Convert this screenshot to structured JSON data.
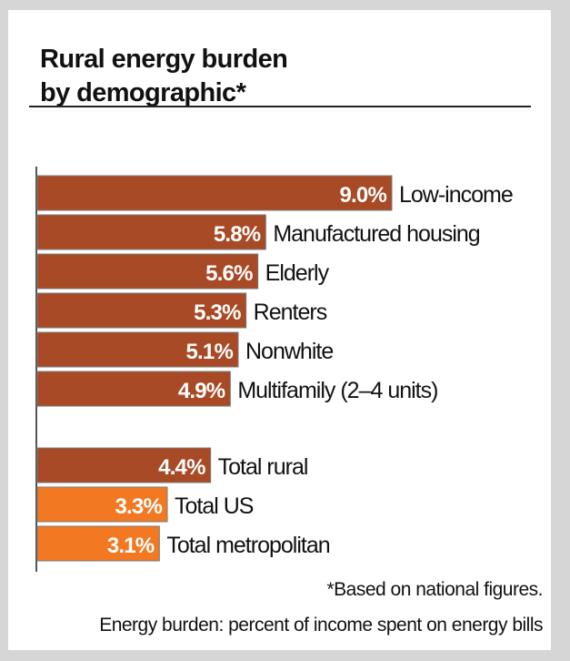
{
  "chart_data": {
    "type": "bar",
    "orientation": "horizontal",
    "title": "Rural energy burden by demographic*",
    "title_lines": [
      "Rural energy burden",
      "by demographic*"
    ],
    "unit": "%",
    "groups": [
      {
        "categories": [
          "Low-income",
          "Manufactured housing",
          "Elderly",
          "Renters",
          "Nonwhite",
          "Multifamily (2–4 units)"
        ],
        "values": [
          9.0,
          5.8,
          5.6,
          5.3,
          5.1,
          4.9
        ],
        "labels": [
          "9.0%",
          "5.8%",
          "5.6%",
          "5.3%",
          "5.1%",
          "4.9%"
        ],
        "colors": [
          "#a84a25",
          "#a84a25",
          "#a84a25",
          "#a84a25",
          "#a84a25",
          "#a84a25"
        ]
      },
      {
        "categories": [
          "Total rural",
          "Total US",
          "Total metropolitan"
        ],
        "values": [
          4.4,
          3.3,
          3.1
        ],
        "labels": [
          "4.4%",
          "3.3%",
          "3.1%"
        ],
        "colors": [
          "#a84a25",
          "#f27822",
          "#f27822"
        ]
      }
    ],
    "xlim": [
      0,
      9.0
    ],
    "grid": false,
    "legend": "none"
  },
  "footnotes": {
    "note": "*Based on national figures.",
    "definition": "Energy burden: percent of income spent on energy bills"
  }
}
